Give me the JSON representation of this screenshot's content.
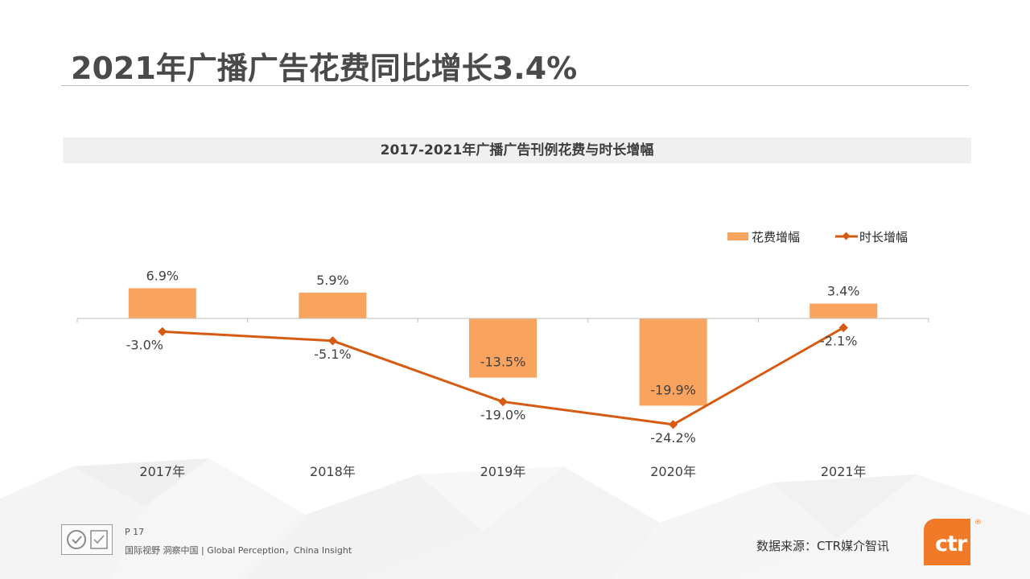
{
  "page": {
    "title": "2021年广播广告花费同比增长3.4%",
    "page_number": "P 17",
    "tagline": "国际视野  洞察中国 |  Global Perception，China Insight",
    "source": "数据来源：CTR媒介智讯",
    "logo_text": "ctr",
    "logo_mark": "®"
  },
  "colors": {
    "bar": "#f8a35e",
    "line": "#d65b12",
    "accent": "#f07a28"
  },
  "chart_data": {
    "type": "bar+line",
    "title": "2017-2021年广播广告刊例花费与时长增幅",
    "categories": [
      "2017年",
      "2018年",
      "2019年",
      "2020年",
      "2021年"
    ],
    "series": [
      {
        "name": "花费增幅",
        "type": "bar",
        "values": [
          6.9,
          5.9,
          -13.5,
          -19.9,
          3.4
        ],
        "labels": [
          "6.9%",
          "5.9%",
          "-13.5%",
          "-19.9%",
          "3.4%"
        ]
      },
      {
        "name": "时长增幅",
        "type": "line",
        "values": [
          -3.0,
          -5.1,
          -19.0,
          -24.2,
          -2.1
        ],
        "labels": [
          "-3.0%",
          "-5.1%",
          "-19.0%",
          "-24.2%",
          "-2.1%"
        ]
      }
    ],
    "legend": "top-right",
    "grid": false,
    "ylim": [
      -25,
      7
    ]
  }
}
